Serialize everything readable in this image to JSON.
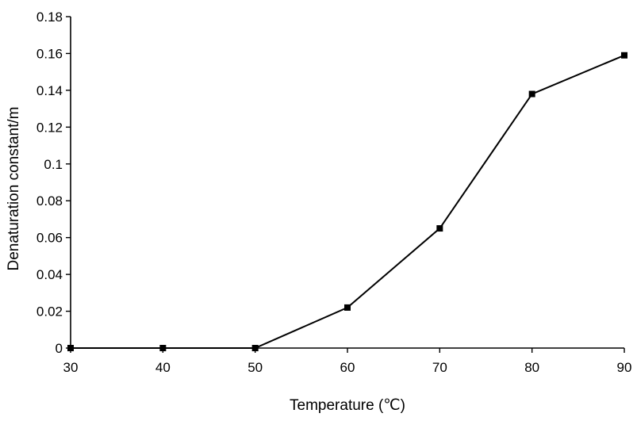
{
  "chart_data": {
    "type": "line",
    "title": "",
    "xlabel": "Temperature (℃)",
    "ylabel": "Denaturation constant/m",
    "x": [
      30,
      40,
      50,
      60,
      70,
      80,
      90
    ],
    "series": [
      {
        "values": [
          0,
          0,
          0,
          0.022,
          0.065,
          0.138,
          0.159
        ]
      }
    ],
    "xlim": [
      30,
      90
    ],
    "ylim": [
      0,
      0.18
    ],
    "xticks": [
      30,
      40,
      50,
      60,
      70,
      80,
      90
    ],
    "yticks": [
      0,
      0.02,
      0.04,
      0.06,
      0.08,
      0.1,
      0.12,
      0.14,
      0.16,
      0.18
    ],
    "xtick_labels": [
      "30",
      "40",
      "50",
      "60",
      "70",
      "80",
      "90"
    ],
    "ytick_labels": [
      "0",
      "0.02",
      "0.04",
      "0.06",
      "0.08",
      "0.1",
      "0.12",
      "0.14",
      "0.16",
      "0.18"
    ],
    "grid": false,
    "legend": "none",
    "marker": "square",
    "line_color": "#000000"
  }
}
